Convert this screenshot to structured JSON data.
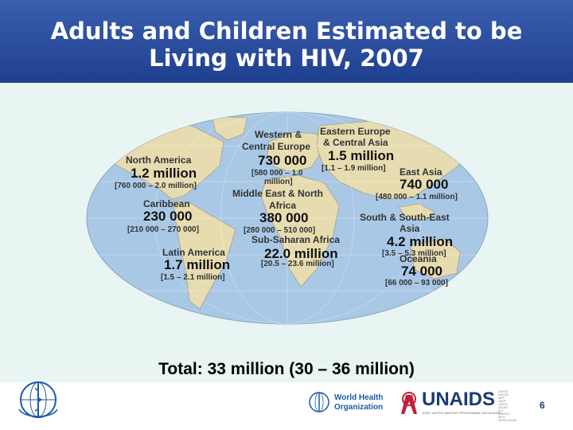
{
  "title": "Adults and Children Estimated to be\nLiving with HIV, 2007",
  "regions": {
    "north_america": {
      "name": "North America",
      "value": "1.2 million",
      "range": "[760 000 – 2.0 million]"
    },
    "caribbean": {
      "name": "Caribbean",
      "value": "230 000",
      "range": "[210 000 – 270 000]"
    },
    "latin_america": {
      "name": "Latin America",
      "value": "1.7 million",
      "range": "[1.5 – 2.1 million]"
    },
    "western_central_europe": {
      "name_line1": "Western &",
      "name_line2": "Central Europe",
      "value": "730 000",
      "range_line1": "[580 000 – 1.0",
      "range_line2": "million]"
    },
    "eastern_europe": {
      "name_line1": "Eastern Europe",
      "name_line2": "& Central Asia",
      "value": "1.5 million",
      "range": "[1.1 – 1.9 million]"
    },
    "middle_east": {
      "name_line1": "Middle East & North",
      "name_line2": "Africa",
      "value": "380 000",
      "range": "[280 000 – 510 000]"
    },
    "sub_saharan": {
      "name": "Sub-Saharan Africa",
      "value": "22.0 million",
      "range": "[20.5 – 23.6 million]"
    },
    "east_asia": {
      "name": "East Asia",
      "value": "740 000",
      "range": "[480 000 – 1.1 million]"
    },
    "south_east_asia": {
      "name_line1": "South & South-East",
      "name_line2": "Asia",
      "value": "4.2 million",
      "range": "[3.5 – 5.3 million]"
    },
    "oceania": {
      "name": "Oceania",
      "value": "74 000",
      "range": "[66 000 – 93 000]"
    }
  },
  "total": "Total: 33 million (30 – 36 million)",
  "footer": {
    "who_name": "World Health\nOrganization",
    "unaids": "UNAIDS",
    "unaids_sub": "JOINT UNITED NATIONS PROGRAMME ON HIV/AIDS",
    "unaids_cosponsors": "UNHCR\nUNICEF\nWFP\nUNDP\nUNFPA\nUNODC\nILO\nUNESCO\nWHO\nWORLD BANK",
    "page_number": "6"
  },
  "colors": {
    "header": "#2a4f9f",
    "panel": "#e9f5f2",
    "ocean": "#a9c8e6",
    "land": "#e7dcb0"
  }
}
